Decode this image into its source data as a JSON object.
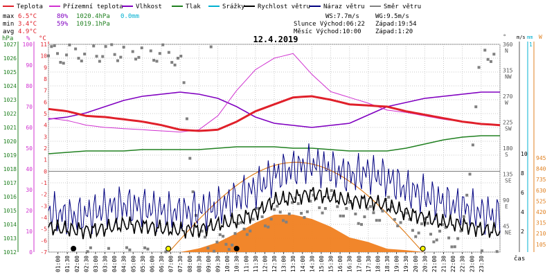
{
  "legend": [
    {
      "label": "Teplota",
      "color": "#e0202a"
    },
    {
      "label": "Přízemní teplota",
      "color": "#d030d0"
    },
    {
      "label": "Vlhkost",
      "color": "#8000c0"
    },
    {
      "label": "Tlak",
      "color": "#208020"
    },
    {
      "label": "Srážky",
      "color": "#00b0d0"
    },
    {
      "label": "Rychlost větru",
      "color": "#000000"
    },
    {
      "label": "Náraz větru",
      "color": "#000080"
    },
    {
      "label": "Směr větru",
      "color": "#808080"
    }
  ],
  "stats": {
    "rows": [
      {
        "label": "max",
        "temp": "6.5°C",
        "hum": "80%",
        "press": "1020.4hPa",
        "rain": "0.0mm"
      },
      {
        "label": "min",
        "temp": "3.4°C",
        "hum": "59%",
        "press": "1019.1hPa",
        "rain": ""
      },
      {
        "label": "avg",
        "temp": "4.9°C",
        "hum": "",
        "press": "",
        "rain": ""
      }
    ],
    "ws": "WS:7.7m/s",
    "wg": "WG:9.5m/s",
    "sun": "Slunce Východ:06:22",
    "sun_set": "Západ:19:54",
    "moon": "Měsíc  Východ:10:00",
    "moon_set": "Západ:1:20"
  },
  "colors": {
    "temp": "#e0202a",
    "ground": "#d030d0",
    "humidity": "#8000c0",
    "pressure": "#208020",
    "rain": "#00b0d0",
    "wind": "#000000",
    "gust": "#000080",
    "direction": "#808080",
    "solar": "#f08020",
    "sun_line": "#e08020"
  },
  "chart_data": {
    "type": "line",
    "title": "12.4.2019",
    "xlabel": "čas",
    "x_ticks": [
      "01:00",
      "01:30",
      "02:00",
      "02:30",
      "03:00",
      "03:30",
      "04:00",
      "04:30",
      "05:00",
      "05:30",
      "06:00",
      "06:30",
      "07:00",
      "07:30",
      "08:00",
      "08:30",
      "09:00",
      "09:30",
      "10:00",
      "10:30",
      "11:00",
      "11:30",
      "12:00",
      "12:30",
      "13:00",
      "13:30",
      "14:00",
      "14:30",
      "15:00",
      "15:30",
      "16:00",
      "16:30",
      "17:00",
      "17:30",
      "18:00",
      "18:30",
      "19:00",
      "19:30",
      "20:00",
      "20:30",
      "21:00",
      "21:30",
      "22:00",
      "22:30",
      "23:00",
      "23:30"
    ],
    "axes": {
      "hpa": {
        "label": "hPa",
        "ticks": [
          "1027",
          "1026",
          "1025",
          "1024",
          "1023",
          "1022",
          "1021",
          "1020",
          "1019",
          "1018",
          "1017",
          "1016",
          "1015",
          "1014",
          "1013",
          "1012"
        ]
      },
      "pct": {
        "label": "%",
        "ticks": [
          "100",
          "90",
          "80",
          "70",
          "60",
          "50",
          "40",
          "30",
          "20",
          "10",
          "0"
        ]
      },
      "temp": {
        "label": "°C",
        "ticks": [
          "11",
          "10",
          "9",
          "8",
          "7",
          "6",
          "5",
          "4",
          "3",
          "2",
          "1",
          "0",
          "-1",
          "-2",
          "-3",
          "-4",
          "-5",
          "-6",
          "-7"
        ]
      },
      "dir": {
        "label": "°",
        "ticks": [
          "360",
          "315",
          "270",
          "225",
          "180",
          "135",
          "90",
          "45"
        ],
        "names": [
          "N",
          "NW",
          "W",
          "SW",
          "S",
          "SE",
          "E",
          "NE"
        ]
      },
      "ms": {
        "label": "m/s",
        "ticks": [
          "10",
          "8",
          "6",
          "4",
          "2"
        ]
      },
      "mm": {
        "label": "mm",
        "ticks": [
          "1"
        ]
      },
      "w": {
        "label": "W",
        "ticks": [
          "945",
          "840",
          "735",
          "630",
          "525",
          "420",
          "315",
          "210",
          "105"
        ]
      }
    },
    "hours": [
      0,
      1,
      2,
      3,
      4,
      5,
      6,
      7,
      8,
      9,
      10,
      11,
      12,
      13,
      14,
      15,
      16,
      17,
      18,
      19,
      20,
      21,
      22,
      23,
      24
    ],
    "series": [
      {
        "name": "Teplota",
        "unit": "°C",
        "values": [
          5.4,
          5.2,
          4.8,
          4.7,
          4.5,
          4.3,
          4.0,
          3.6,
          3.5,
          3.6,
          4.3,
          5.2,
          5.8,
          6.4,
          6.5,
          6.2,
          5.8,
          5.7,
          5.6,
          5.2,
          4.9,
          4.6,
          4.3,
          4.1,
          4.0
        ]
      },
      {
        "name": "Přízemní teplota",
        "unit": "°C",
        "values": [
          4.6,
          4.4,
          4.0,
          3.8,
          3.7,
          3.6,
          3.5,
          3.4,
          3.6,
          4.8,
          7.0,
          8.8,
          9.8,
          10.2,
          8.4,
          6.9,
          6.4,
          5.9,
          5.3,
          5.1,
          4.8,
          4.5,
          4.3,
          4.1,
          4.0
        ]
      },
      {
        "name": "Vlhkost",
        "unit": "%",
        "values": [
          64,
          65,
          67,
          70,
          73,
          75,
          76,
          77,
          76,
          74,
          70,
          65,
          62,
          61,
          60,
          61,
          62,
          66,
          70,
          72,
          74,
          75,
          76,
          77,
          77
        ]
      },
      {
        "name": "Tlak",
        "unit": "hPa",
        "values": [
          1019.1,
          1019.2,
          1019.3,
          1019.3,
          1019.3,
          1019.4,
          1019.4,
          1019.4,
          1019.4,
          1019.5,
          1019.6,
          1019.6,
          1019.6,
          1019.5,
          1019.5,
          1019.4,
          1019.3,
          1019.3,
          1019.3,
          1019.5,
          1019.8,
          1020.1,
          1020.3,
          1020.4,
          1020.4
        ]
      },
      {
        "name": "Rychlost větru",
        "unit": "m/s",
        "values": [
          2.5,
          2.3,
          2.2,
          2.4,
          2.8,
          2.7,
          2.4,
          2.2,
          2.3,
          2.8,
          3.2,
          4.0,
          5.2,
          5.5,
          6.0,
          5.6,
          5.2,
          5.2,
          4.7,
          4.0,
          3.5,
          3.0,
          2.8,
          2.3,
          2.1
        ]
      },
      {
        "name": "Náraz větru",
        "unit": "m/s",
        "values": [
          4.2,
          3.6,
          3.8,
          4.4,
          4.8,
          4.5,
          4.2,
          4.0,
          4.2,
          4.6,
          5.5,
          6.5,
          7.8,
          8.5,
          9.0,
          8.4,
          7.8,
          8.1,
          7.5,
          6.4,
          5.8,
          5.0,
          4.6,
          4.0,
          3.6
        ]
      },
      {
        "name": "Směr větru",
        "unit": "°",
        "values": [
          340,
          345,
          350,
          348,
          350,
          352,
          345,
          340,
          20,
          10,
          30,
          60,
          60,
          75,
          80,
          90,
          70,
          60,
          80,
          50,
          40,
          30,
          20,
          345,
          350
        ]
      }
    ],
    "solar": {
      "name": "Sluneční záření",
      "unit": "W",
      "values": [
        0,
        0,
        0,
        0,
        0,
        0,
        0,
        0,
        40,
        90,
        190,
        280,
        370,
        360,
        330,
        240,
        150,
        90,
        40,
        10,
        0,
        0,
        0,
        0,
        0
      ]
    },
    "theoretical_max": {
      "unit": "W",
      "peak_hour": 13.9,
      "peak": 875,
      "rise_hour": 6.4,
      "set_hour": 19.9
    }
  }
}
